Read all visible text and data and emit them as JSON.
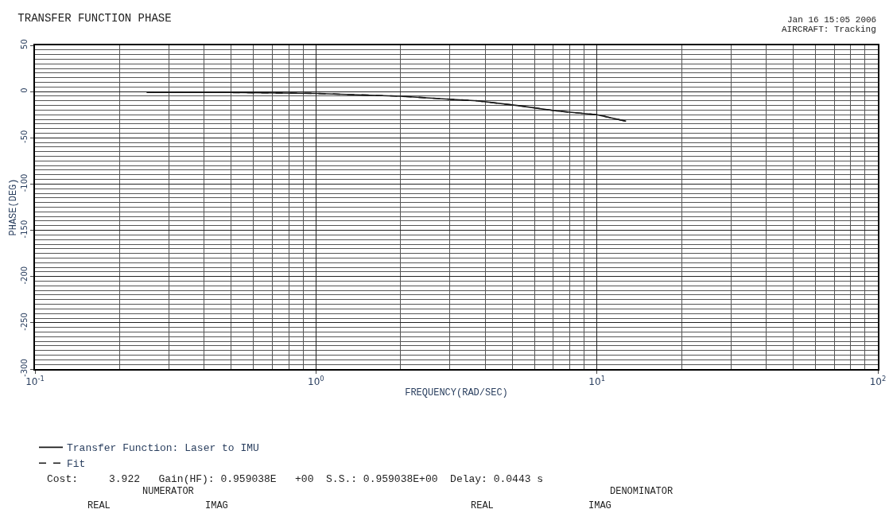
{
  "chart_data": {
    "type": "line",
    "title": "TRANSFER FUNCTION PHASE",
    "xlabel": "FREQUENCY(RAD/SEC)",
    "ylabel": "PHASE(DEG)",
    "log": "x",
    "grid": true,
    "legend": "bottom left",
    "marker": "none",
    "xlim": [
      0.1,
      100
    ],
    "xticks": [
      {
        "value": 0.1,
        "label": "10$^{-1}$"
      },
      {
        "value": 1,
        "label": "10$^{0}$"
      },
      {
        "value": 10,
        "label": "10$^{1}$"
      },
      {
        "value": 100,
        "label": "10$^{2}$"
      }
    ],
    "ylim": [
      -300,
      50
    ],
    "yticks": [
      -300,
      -250,
      -200,
      -150,
      -100,
      -50,
      0,
      50
    ],
    "x": [
      0.25,
      0.5,
      1,
      2,
      2.9,
      3.75,
      5.2,
      7.2,
      10,
      12.7
    ],
    "series": [
      {
        "name": "Transfer Function: Laser to IMU",
        "color": "#1a1a1a",
        "line_style": "solid",
        "values": [
          -1,
          -1,
          -2,
          -5,
          -8,
          -10,
          -15,
          -21,
          -25,
          -32
        ]
      },
      {
        "name": "Fit",
        "color": "#1a1a1a",
        "line_style": "dashed",
        "values": [
          -1,
          -1,
          -2,
          -5,
          -8,
          -10,
          -15,
          -21,
          -25,
          -32
        ]
      }
    ],
    "annotations": [
      "Jan 16 15:05 2006",
      "AIRCRAFT: Tracking",
      "Cost:     3.922   Gain(HF): 0.959038E   +00  S.S.: 0.959038E+00  Delay: 0.0443 s",
      "NUMERATOR",
      "DENOMINATOR",
      "REAL",
      "IMAG",
      "REAL",
      "IMAG"
    ]
  }
}
